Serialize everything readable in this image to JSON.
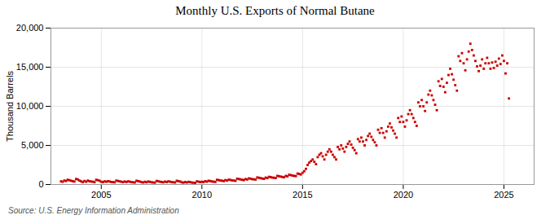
{
  "chart_data": {
    "type": "scatter",
    "title": "Monthly U.S. Exports of Normal Butane",
    "ylabel": "Thousand Barrels",
    "caption": "Source: U.S. Energy Information Administration",
    "color": "#CC0000",
    "marker": "square",
    "grid": true,
    "xlim": [
      2002.5,
      2026.5
    ],
    "xticks": [
      2005,
      2010,
      2015,
      2020,
      2025
    ],
    "ylim": [
      0,
      20000
    ],
    "yticks": [
      0,
      {
        "value": 5000,
        "label": "5,000"
      },
      {
        "value": 10000,
        "label": "10,000"
      },
      {
        "value": 15000,
        "label": "15,000"
      },
      {
        "value": 20000,
        "label": "20,000"
      }
    ],
    "x": [
      2003.0,
      2003.083,
      2003.167,
      2003.25,
      2003.333,
      2003.417,
      2003.5,
      2003.583,
      2003.667,
      2003.75,
      2003.833,
      2003.917,
      2004.0,
      2004.083,
      2004.167,
      2004.25,
      2004.333,
      2004.417,
      2004.5,
      2004.583,
      2004.667,
      2004.75,
      2004.833,
      2004.917,
      2005.0,
      2005.083,
      2005.167,
      2005.25,
      2005.333,
      2005.417,
      2005.5,
      2005.583,
      2005.667,
      2005.75,
      2005.833,
      2005.917,
      2006.0,
      2006.083,
      2006.167,
      2006.25,
      2006.333,
      2006.417,
      2006.5,
      2006.583,
      2006.667,
      2006.75,
      2006.833,
      2006.917,
      2007.0,
      2007.083,
      2007.167,
      2007.25,
      2007.333,
      2007.417,
      2007.5,
      2007.583,
      2007.667,
      2007.75,
      2007.833,
      2007.917,
      2008.0,
      2008.083,
      2008.167,
      2008.25,
      2008.333,
      2008.417,
      2008.5,
      2008.583,
      2008.667,
      2008.75,
      2008.833,
      2008.917,
      2009.0,
      2009.083,
      2009.167,
      2009.25,
      2009.333,
      2009.417,
      2009.5,
      2009.583,
      2009.667,
      2009.75,
      2009.833,
      2009.917,
      2010.0,
      2010.083,
      2010.167,
      2010.25,
      2010.333,
      2010.417,
      2010.5,
      2010.583,
      2010.667,
      2010.75,
      2010.833,
      2010.917,
      2011.0,
      2011.083,
      2011.167,
      2011.25,
      2011.333,
      2011.417,
      2011.5,
      2011.583,
      2011.667,
      2011.75,
      2011.833,
      2011.917,
      2012.0,
      2012.083,
      2012.167,
      2012.25,
      2012.333,
      2012.417,
      2012.5,
      2012.583,
      2012.667,
      2012.75,
      2012.833,
      2012.917,
      2013.0,
      2013.083,
      2013.167,
      2013.25,
      2013.333,
      2013.417,
      2013.5,
      2013.583,
      2013.667,
      2013.75,
      2013.833,
      2013.917,
      2014.0,
      2014.083,
      2014.167,
      2014.25,
      2014.333,
      2014.417,
      2014.5,
      2014.583,
      2014.667,
      2014.75,
      2014.833,
      2014.917,
      2015.0,
      2015.083,
      2015.167,
      2015.25,
      2015.333,
      2015.417,
      2015.5,
      2015.583,
      2015.667,
      2015.75,
      2015.833,
      2015.917,
      2016.0,
      2016.083,
      2016.167,
      2016.25,
      2016.333,
      2016.417,
      2016.5,
      2016.583,
      2016.667,
      2016.75,
      2016.833,
      2016.917,
      2017.0,
      2017.083,
      2017.167,
      2017.25,
      2017.333,
      2017.417,
      2017.5,
      2017.583,
      2017.667,
      2017.75,
      2017.833,
      2017.917,
      2018.0,
      2018.083,
      2018.167,
      2018.25,
      2018.333,
      2018.417,
      2018.5,
      2018.583,
      2018.667,
      2018.75,
      2018.833,
      2018.917,
      2019.0,
      2019.083,
      2019.167,
      2019.25,
      2019.333,
      2019.417,
      2019.5,
      2019.583,
      2019.667,
      2019.75,
      2019.833,
      2019.917,
      2020.0,
      2020.083,
      2020.167,
      2020.25,
      2020.333,
      2020.417,
      2020.5,
      2020.583,
      2020.667,
      2020.75,
      2020.833,
      2020.917,
      2021.0,
      2021.083,
      2021.167,
      2021.25,
      2021.333,
      2021.417,
      2021.5,
      2021.583,
      2021.667,
      2021.75,
      2021.833,
      2021.917,
      2022.0,
      2022.083,
      2022.167,
      2022.25,
      2022.333,
      2022.417,
      2022.5,
      2022.583,
      2022.667,
      2022.75,
      2022.833,
      2022.917,
      2023.0,
      2023.083,
      2023.167,
      2023.25,
      2023.333,
      2023.417,
      2023.5,
      2023.583,
      2023.667,
      2023.75,
      2023.833,
      2023.917,
      2024.0,
      2024.083,
      2024.167,
      2024.25,
      2024.333,
      2024.417,
      2024.5,
      2024.583,
      2024.667,
      2024.75,
      2024.833,
      2024.917,
      2025.0,
      2025.083,
      2025.167,
      2025.25
    ],
    "values": [
      400,
      350,
      500,
      450,
      600,
      550,
      480,
      420,
      380,
      700,
      650,
      500,
      400,
      300,
      450,
      350,
      500,
      420,
      380,
      350,
      300,
      600,
      550,
      480,
      350,
      300,
      400,
      350,
      420,
      380,
      320,
      300,
      280,
      500,
      450,
      400,
      350,
      300,
      380,
      320,
      400,
      360,
      300,
      280,
      260,
      480,
      430,
      380,
      300,
      260,
      350,
      290,
      380,
      340,
      280,
      260,
      240,
      460,
      410,
      360,
      320,
      280,
      370,
      310,
      400,
      360,
      300,
      280,
      260,
      480,
      430,
      380,
      280,
      240,
      320,
      260,
      340,
      300,
      250,
      230,
      210,
      400,
      360,
      310,
      350,
      310,
      420,
      360,
      480,
      440,
      380,
      360,
      330,
      600,
      560,
      510,
      480,
      440,
      560,
      500,
      620,
      580,
      520,
      500,
      470,
      740,
      700,
      650,
      600,
      560,
      700,
      640,
      780,
      740,
      680,
      660,
      630,
      900,
      860,
      810,
      760,
      720,
      880,
      820,
      980,
      940,
      880,
      860,
      830,
      1100,
      1060,
      1010,
      960,
      920,
      1100,
      1040,
      1250,
      1200,
      1140,
      1100,
      1080,
      1400,
      1350,
      1280,
      1500,
      1700,
      2000,
      2500,
      2800,
      3000,
      3200,
      2900,
      2600,
      3500,
      3800,
      4000,
      3600,
      3200,
      3800,
      4200,
      4500,
      4200,
      3800,
      3500,
      3200,
      4800,
      4500,
      5000,
      4600,
      4200,
      4800,
      5200,
      5500,
      5100,
      4700,
      4400,
      4000,
      5800,
      5500,
      6000,
      5500,
      5000,
      5700,
      6200,
      6500,
      6100,
      5700,
      5400,
      5000,
      7000,
      6600,
      7200,
      6600,
      6000,
      6800,
      7400,
      7800,
      7300,
      6900,
      6500,
      6000,
      8500,
      8000,
      8700,
      8000,
      7400,
      8200,
      9000,
      9500,
      9000,
      8500,
      8000,
      7500,
      10500,
      10000,
      10800,
      10000,
      9400,
      10500,
      11500,
      12000,
      11400,
      10800,
      10200,
      9500,
      13200,
      12600,
      13500,
      12500,
      11800,
      13000,
      14000,
      14800,
      14100,
      13400,
      12700,
      12000,
      16400,
      15800,
      16800,
      15500,
      14600,
      16000,
      17000,
      18000,
      17200,
      16500,
      15800,
      15100,
      14500,
      15200,
      16000,
      14800,
      15500,
      16200,
      15500,
      14800,
      15600,
      14900,
      15700,
      15200,
      16100,
      15400,
      16500,
      15800,
      14200,
      15500,
      11000
    ]
  }
}
